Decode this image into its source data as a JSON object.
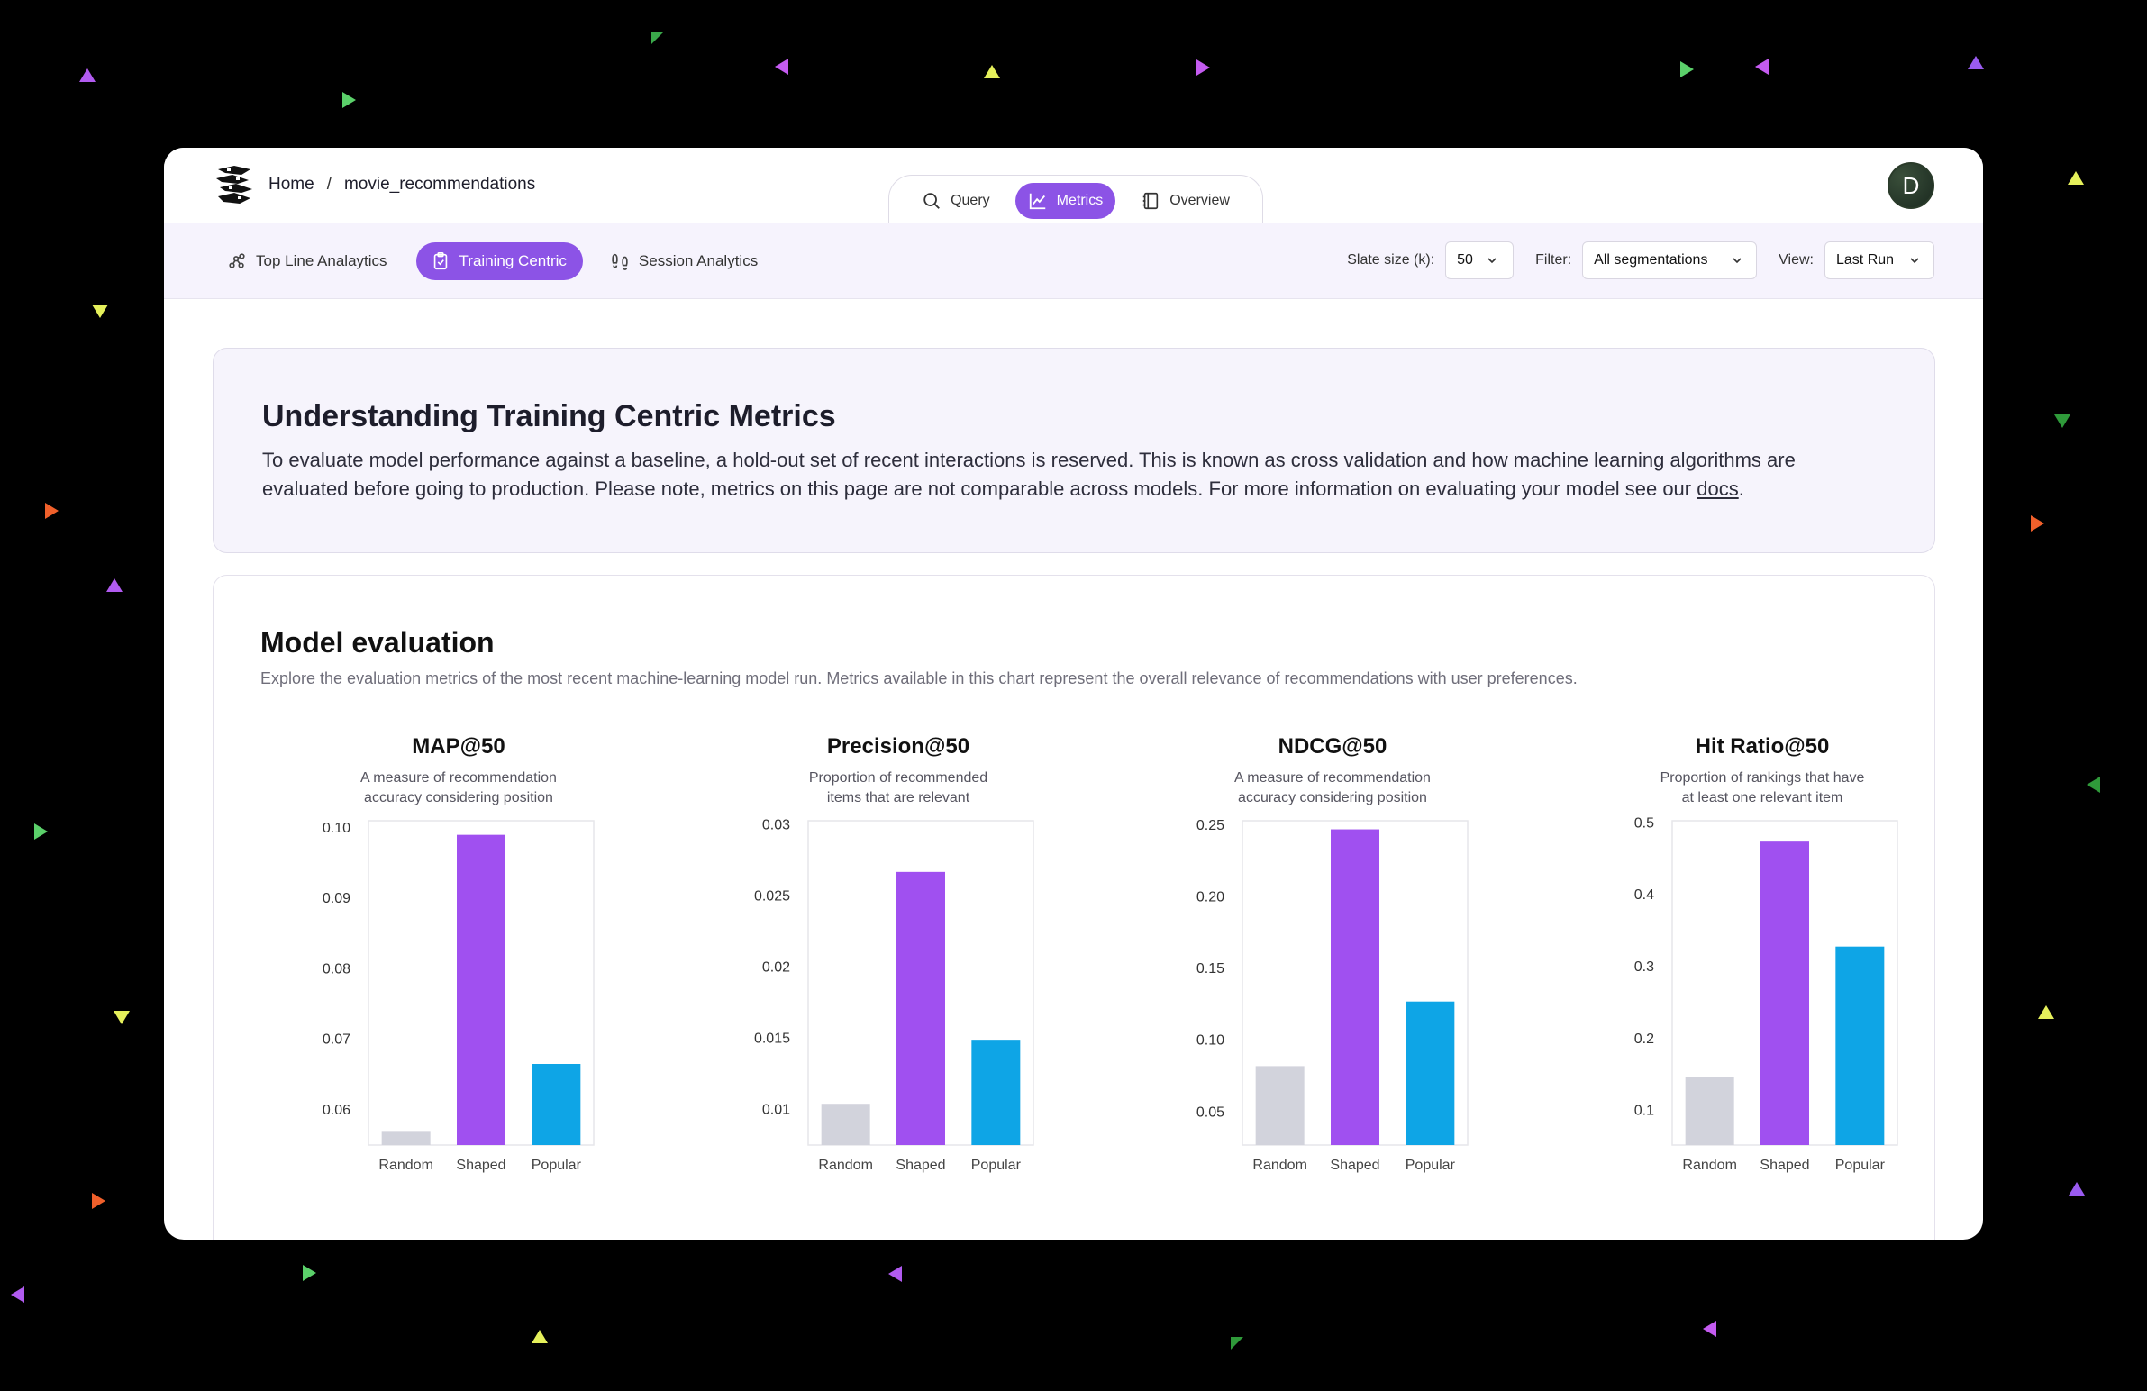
{
  "breadcrumb": {
    "home": "Home",
    "separator": "/",
    "current": "movie_recommendations"
  },
  "top_tabs": [
    {
      "label": "Query",
      "icon": "search-icon"
    },
    {
      "label": "Metrics",
      "icon": "chart-line-icon",
      "active": true
    },
    {
      "label": "Overview",
      "icon": "notebook-icon"
    }
  ],
  "avatar": {
    "initial": "D"
  },
  "sub_tabs": [
    {
      "label": "Top Line Analaytics",
      "icon": "network-icon"
    },
    {
      "label": "Training Centric",
      "icon": "clipboard-check-icon",
      "active": true
    },
    {
      "label": "Session Analytics",
      "icon": "footprints-icon"
    }
  ],
  "controls": {
    "slate_label": "Slate size (k):",
    "slate_value": "50",
    "filter_label": "Filter:",
    "filter_value": "All segmentations",
    "view_label": "View:",
    "view_value": "Last Run"
  },
  "info": {
    "title": "Understanding Training Centric Metrics",
    "text": "To evaluate model performance against a baseline, a hold-out set of recent interactions is reserved. This is known as cross validation and how machine learning algorithms are evaluated before going to production. Please note, metrics on this page are not comparable across models. For more information on evaluating your model see our ",
    "link": "docs",
    "suffix": "."
  },
  "evaluation": {
    "title": "Model evaluation",
    "subtitle": "Explore the evaluation metrics of the most recent machine-learning model run.  Metrics available in this chart represent the overall relevance of recommendations with user preferences."
  },
  "colors": {
    "random": "#d2d3dc",
    "shaped": "#a050f0",
    "popular": "#0ea5e6",
    "accent": "#8c53e6"
  },
  "chart_data": [
    {
      "type": "bar",
      "title": "MAP@50",
      "description": [
        "A measure of recommendation",
        "accuracy considering position"
      ],
      "categories": [
        "Random",
        "Shaped",
        "Popular"
      ],
      "values": [
        0.057,
        0.099,
        0.0665
      ],
      "ylim": [
        0.055,
        0.101
      ],
      "yticks": [
        0.06,
        0.07,
        0.08,
        0.09,
        0.1
      ],
      "ytick_labels": [
        "0.06",
        "0.07",
        "0.08",
        "0.09",
        "0.10"
      ]
    },
    {
      "type": "bar",
      "title": "Precision@50",
      "description": [
        "Proportion of recommended",
        "items that are relevant"
      ],
      "categories": [
        "Random",
        "Shaped",
        "Popular"
      ],
      "values": [
        0.0104,
        0.0267,
        0.0149
      ],
      "ylim": [
        0.0075,
        0.0303
      ],
      "yticks": [
        0.01,
        0.015,
        0.02,
        0.025,
        0.03
      ],
      "ytick_labels": [
        "0.01",
        "0.015",
        "0.02",
        "0.025",
        "0.03"
      ]
    },
    {
      "type": "bar",
      "title": "NDCG@50",
      "description": [
        "A measure of recommendation",
        "accuracy considering position"
      ],
      "categories": [
        "Random",
        "Shaped",
        "Popular"
      ],
      "values": [
        0.082,
        0.247,
        0.127
      ],
      "ylim": [
        0.027,
        0.253
      ],
      "yticks": [
        0.05,
        0.1,
        0.15,
        0.2,
        0.25
      ],
      "ytick_labels": [
        "0.05",
        "0.10",
        "0.15",
        "0.20",
        "0.25"
      ]
    },
    {
      "type": "bar",
      "title": "Hit Ratio@50",
      "description": [
        "Proportion of rankings that have",
        "at least one relevant item"
      ],
      "categories": [
        "Random",
        "Shaped",
        "Popular"
      ],
      "values": [
        0.146,
        0.474,
        0.328
      ],
      "ylim": [
        0.052,
        0.503
      ],
      "yticks": [
        0.1,
        0.2,
        0.3,
        0.4,
        0.5
      ],
      "ytick_labels": [
        "0.1",
        "0.2",
        "0.3",
        "0.4",
        "0.5"
      ]
    }
  ]
}
